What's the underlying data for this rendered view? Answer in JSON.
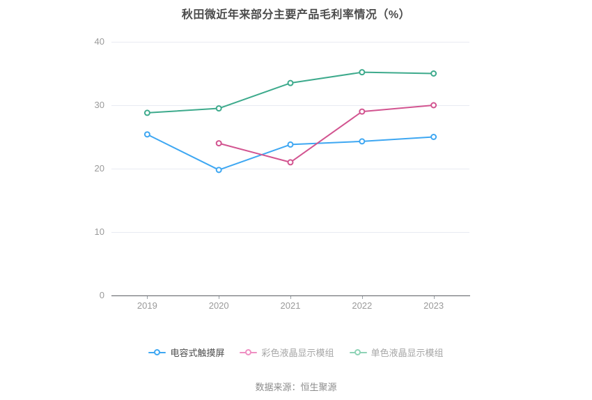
{
  "source": "数据来源：恒生聚源",
  "chart_data": {
    "type": "line",
    "title": "秋田微近年来部分主要产品毛利率情况（%）",
    "categories": [
      "2019",
      "2020",
      "2021",
      "2022",
      "2023"
    ],
    "series": [
      {
        "name": "电容式触摸屏",
        "color": "#3ea7f2",
        "legend_marker_color": "#3ea7f2",
        "legend_text_color": "#4c4c4c",
        "values": [
          25.4,
          19.8,
          23.8,
          24.3,
          25.0
        ]
      },
      {
        "name": "彩色液晶显示模组",
        "color": "#d25490",
        "legend_marker_color": "#ef8fc3",
        "legend_text_color": "#a6a6a6",
        "values": [
          null,
          24.0,
          21.0,
          29.0,
          30.0
        ]
      },
      {
        "name": "单色液晶显示模组",
        "color": "#3daa8c",
        "legend_marker_color": "#8ed3b6",
        "legend_text_color": "#a6a6a6",
        "values": [
          28.8,
          29.5,
          33.5,
          35.2,
          35.0
        ]
      }
    ],
    "xlabel": "",
    "ylabel": "",
    "ylim": [
      0,
      40
    ],
    "yticks": [
      0,
      10,
      20,
      30,
      40
    ],
    "grid": true,
    "legend_position": "bottom",
    "colors": {
      "gridline": "#e8ebf2",
      "axis_line": "#5b5e63",
      "tick_label": "#9a9a9a",
      "title": "#4c4c4c",
      "source_text": "#8c8c8c",
      "background": "#ffffff"
    }
  }
}
